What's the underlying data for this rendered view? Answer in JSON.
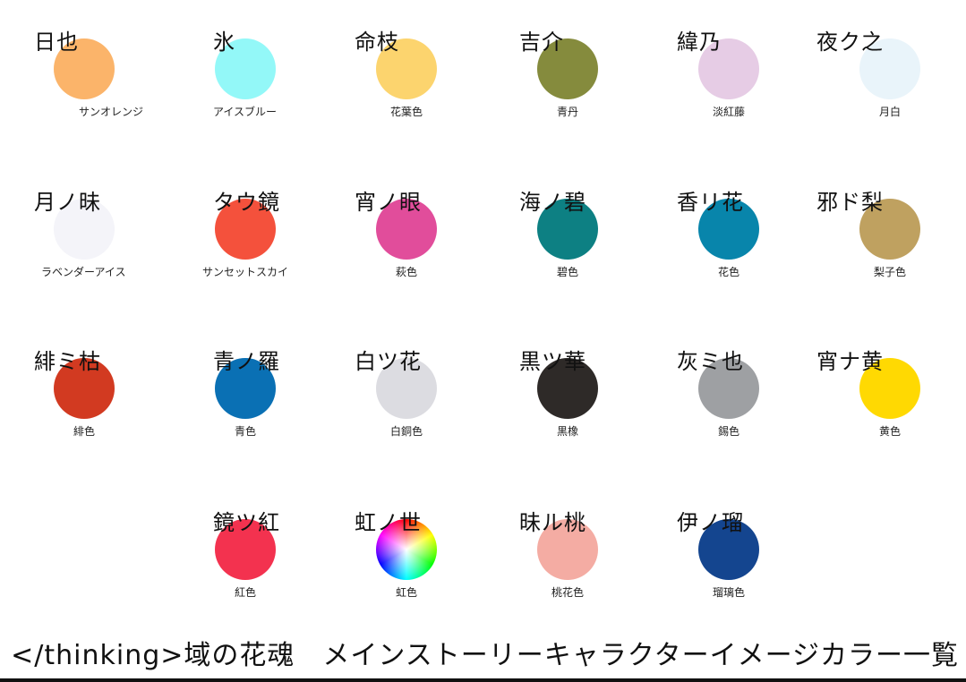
{
  "title": "</thinking>域の花魂　メインストーリーキャラクターイメージカラー一覧",
  "characters": [
    {
      "name": "日也",
      "color_name": "サンオレンジ",
      "hex": "#FBB46A"
    },
    {
      "name": "氷",
      "color_name": "アイスブルー",
      "hex": "#93F8F8"
    },
    {
      "name": "命枝",
      "color_name": "花葉色",
      "hex": "#FCD46E"
    },
    {
      "name": "吉介",
      "color_name": "青丹",
      "hex": "#858B3D"
    },
    {
      "name": "緯乃",
      "color_name": "淡紅藤",
      "hex": "#E6CCE5"
    },
    {
      "name": "夜ク之",
      "color_name": "月白",
      "hex": "#E9F4FA"
    },
    {
      "name": "月ノ昧",
      "color_name": "ラベンダーアイス",
      "hex": "#F4F4F9"
    },
    {
      "name": "タウ鏡",
      "color_name": "サンセットスカイ",
      "hex": "#F4513C"
    },
    {
      "name": "宵ノ眼",
      "color_name": "萩色",
      "hex": "#E14D9B"
    },
    {
      "name": "海ノ碧",
      "color_name": "碧色",
      "hex": "#0D8083"
    },
    {
      "name": "香リ花",
      "color_name": "花色",
      "hex": "#0885AB"
    },
    {
      "name": "邪ド梨",
      "color_name": "梨子色",
      "hex": "#BFA160"
    },
    {
      "name": "緋ミ枯",
      "color_name": "緋色",
      "hex": "#D23A21"
    },
    {
      "name": "青ノ羅",
      "color_name": "青色",
      "hex": "#0A70B4"
    },
    {
      "name": "白ツ花",
      "color_name": "白銅色",
      "hex": "#DCDCE1"
    },
    {
      "name": "黒ツ華",
      "color_name": "黒橡",
      "hex": "#2E2A28"
    },
    {
      "name": "灰ミ也",
      "color_name": "錫色",
      "hex": "#9EA0A3"
    },
    {
      "name": "宵ナ黄",
      "color_name": "黄色",
      "hex": "#FFD902"
    },
    {
      "name": "鏡ツ紅",
      "color_name": "紅色",
      "hex": "#F3324F"
    },
    {
      "name": "虹ノ世",
      "color_name": "虹色",
      "hex": "rainbow"
    },
    {
      "name": "昧ル桃",
      "color_name": "桃花色",
      "hex": "#F4ACA3"
    },
    {
      "name": "伊ノ瑠",
      "color_name": "瑠璃色",
      "hex": "#14458F"
    }
  ]
}
